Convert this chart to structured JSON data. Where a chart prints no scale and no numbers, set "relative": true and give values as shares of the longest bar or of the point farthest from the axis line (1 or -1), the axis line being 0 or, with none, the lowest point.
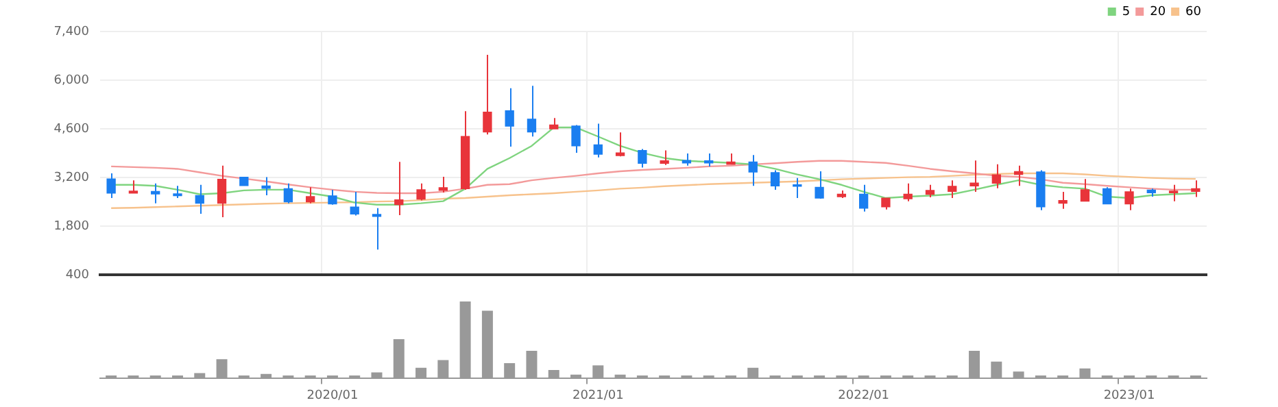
{
  "chart_data": [
    {
      "type": "candlestick",
      "categories": [
        null,
        null,
        null,
        null,
        null,
        null,
        null,
        null,
        null,
        null,
        "2020/01",
        null,
        null,
        null,
        null,
        null,
        null,
        null,
        null,
        null,
        null,
        null,
        "2021/01",
        null,
        null,
        null,
        null,
        null,
        null,
        null,
        null,
        null,
        null,
        null,
        "2022/01",
        null,
        null,
        null,
        null,
        null,
        null,
        null,
        null,
        null,
        null,
        null,
        "2023/01",
        null,
        null,
        null
      ],
      "ohlc": [
        [
          3160,
          3320,
          2610,
          2750
        ],
        [
          2750,
          3120,
          2750,
          2810
        ],
        [
          2800,
          3030,
          2460,
          2730
        ],
        [
          2730,
          2960,
          2610,
          2680
        ],
        [
          2680,
          2990,
          2160,
          2460
        ],
        [
          2460,
          3540,
          2060,
          3150
        ],
        [
          3210,
          3210,
          2970,
          2970
        ],
        [
          2960,
          3210,
          2690,
          2890
        ],
        [
          2880,
          3030,
          2460,
          2500
        ],
        [
          2500,
          2920,
          2460,
          2650
        ],
        [
          2670,
          2850,
          2420,
          2440
        ],
        [
          2350,
          2790,
          2110,
          2150
        ],
        [
          2140,
          2320,
          1130,
          2080
        ],
        [
          2420,
          3650,
          2120,
          2560
        ],
        [
          2580,
          3030,
          2540,
          2850
        ],
        [
          2830,
          3220,
          2770,
          2910
        ],
        [
          2880,
          5110,
          2850,
          4380
        ],
        [
          4510,
          6730,
          4440,
          5080
        ],
        [
          5120,
          5770,
          4090,
          4680
        ],
        [
          4880,
          5840,
          4380,
          4510
        ],
        [
          4600,
          4910,
          4600,
          4710
        ],
        [
          4680,
          4710,
          3910,
          4110
        ],
        [
          4140,
          4750,
          3780,
          3870
        ],
        [
          3830,
          4500,
          3810,
          3910
        ],
        [
          3980,
          4020,
          3490,
          3610
        ],
        [
          3610,
          3980,
          3560,
          3680
        ],
        [
          3690,
          3890,
          3540,
          3620
        ],
        [
          3680,
          3890,
          3520,
          3620
        ],
        [
          3580,
          3890,
          3580,
          3650
        ],
        [
          3650,
          3850,
          2960,
          3360
        ],
        [
          3340,
          3410,
          2850,
          2960
        ],
        [
          2990,
          3190,
          2610,
          2950
        ],
        [
          2920,
          3380,
          2590,
          2610
        ],
        [
          2650,
          2830,
          2610,
          2720
        ],
        [
          2720,
          2990,
          2220,
          2320
        ],
        [
          2360,
          2610,
          2280,
          2610
        ],
        [
          2590,
          3030,
          2520,
          2720
        ],
        [
          2720,
          2990,
          2630,
          2830
        ],
        [
          2800,
          3120,
          2610,
          2950
        ],
        [
          2960,
          3690,
          2790,
          3040
        ],
        [
          3040,
          3580,
          2890,
          3280
        ],
        [
          3290,
          3540,
          2960,
          3370
        ],
        [
          3360,
          3410,
          2260,
          2360
        ],
        [
          2460,
          2790,
          2300,
          2540
        ],
        [
          2520,
          3160,
          2520,
          2850
        ],
        [
          2880,
          2920,
          2440,
          2440
        ],
        [
          2440,
          2880,
          2260,
          2790
        ],
        [
          2840,
          2880,
          2650,
          2760
        ],
        [
          2760,
          2990,
          2520,
          2810
        ],
        [
          2800,
          3120,
          2640,
          2880
        ]
      ],
      "series": [
        {
          "name": "5",
          "type": "line",
          "color": "#7fd47f",
          "values": [
            2990,
            2990,
            2960,
            2850,
            2720,
            2750,
            2830,
            2850,
            2850,
            2750,
            2650,
            2480,
            2420,
            2420,
            2460,
            2520,
            2880,
            3450,
            3760,
            4110,
            4640,
            4640,
            4380,
            4110,
            3910,
            3760,
            3680,
            3650,
            3620,
            3580,
            3450,
            3290,
            3150,
            2990,
            2790,
            2610,
            2650,
            2680,
            2720,
            2850,
            2990,
            3120,
            2990,
            2920,
            2880,
            2650,
            2610,
            2690,
            2720,
            2750
          ]
        },
        {
          "name": "20",
          "type": "line",
          "color": "#f39a9a",
          "values": [
            3520,
            3500,
            3480,
            3450,
            3350,
            3250,
            3170,
            3090,
            3000,
            2920,
            2850,
            2790,
            2760,
            2750,
            2750,
            2790,
            2880,
            2990,
            3010,
            3120,
            3190,
            3250,
            3320,
            3380,
            3420,
            3450,
            3480,
            3520,
            3540,
            3580,
            3610,
            3650,
            3680,
            3680,
            3650,
            3620,
            3540,
            3450,
            3380,
            3320,
            3250,
            3220,
            3150,
            3050,
            3010,
            2960,
            2920,
            2880,
            2850,
            2850
          ]
        },
        {
          "name": "60",
          "type": "line",
          "color": "#f7c28c",
          "values": [
            2320,
            2330,
            2350,
            2370,
            2390,
            2410,
            2430,
            2450,
            2460,
            2470,
            2480,
            2490,
            2510,
            2520,
            2550,
            2590,
            2610,
            2650,
            2690,
            2720,
            2750,
            2790,
            2830,
            2880,
            2910,
            2950,
            2980,
            3010,
            3030,
            3050,
            3070,
            3090,
            3120,
            3150,
            3170,
            3190,
            3210,
            3220,
            3250,
            3280,
            3300,
            3320,
            3320,
            3320,
            3290,
            3250,
            3220,
            3190,
            3170,
            3160
          ]
        }
      ],
      "colors": [
        "#1a7ef0",
        "#e8343a",
        "#1a7ef0",
        "#1a7ef0",
        "#1a7ef0",
        "#e8343a",
        "#1a7ef0",
        "#1a7ef0",
        "#1a7ef0",
        "#e8343a",
        "#1a7ef0",
        "#1a7ef0",
        "#1a7ef0",
        "#e8343a",
        "#e8343a",
        "#e8343a",
        "#e8343a",
        "#e8343a",
        "#1a7ef0",
        "#1a7ef0",
        "#e8343a",
        "#1a7ef0",
        "#1a7ef0",
        "#e8343a",
        "#1a7ef0",
        "#e8343a",
        "#1a7ef0",
        "#1a7ef0",
        "#e8343a",
        "#1a7ef0",
        "#1a7ef0",
        "#1a7ef0",
        "#1a7ef0",
        "#e8343a",
        "#1a7ef0",
        "#e8343a",
        "#e8343a",
        "#e8343a",
        "#e8343a",
        "#e8343a",
        "#e8343a",
        "#e8343a",
        "#1a7ef0",
        "#e8343a",
        "#e8343a",
        "#1a7ef0",
        "#e8343a",
        "#1a7ef0",
        "#e8343a",
        "#e8343a"
      ],
      "ylim": [
        400,
        7400
      ],
      "yticks": [
        400,
        {
          "value": 1800,
          "label": "1,800"
        },
        {
          "value": 3200,
          "label": "3,200"
        },
        {
          "value": 4600,
          "label": "4,600"
        },
        {
          "value": 6000,
          "label": "6,000"
        },
        {
          "value": 7400,
          "label": "7,400"
        }
      ],
      "grid": true,
      "legend": "top right",
      "marker": "none",
      "tick_labels": "y"
    },
    {
      "type": "bar",
      "relative": true,
      "color": "#999999",
      "categories": [
        null,
        null,
        null,
        null,
        null,
        null,
        null,
        null,
        null,
        null,
        "2020/01",
        null,
        null,
        null,
        null,
        null,
        null,
        null,
        null,
        null,
        null,
        null,
        "2021/01",
        null,
        null,
        null,
        null,
        null,
        null,
        null,
        null,
        null,
        null,
        null,
        "2022/01",
        null,
        null,
        null,
        null,
        null,
        null,
        null,
        null,
        null,
        null,
        null,
        "2023/01",
        null,
        null,
        null
      ],
      "values": [
        0.04,
        0.04,
        0.04,
        0.04,
        0.07,
        0.25,
        0.04,
        0.06,
        0.04,
        0.04,
        0.04,
        0.04,
        0.08,
        0.51,
        0.14,
        0.24,
        1,
        0.88,
        0.2,
        0.36,
        0.11,
        0.05,
        0.17,
        0.05,
        0.04,
        0.04,
        0.04,
        0.04,
        0.04,
        0.14,
        0.04,
        0.04,
        0.04,
        0.04,
        0.04,
        0.04,
        0.04,
        0.04,
        0.04,
        0.36,
        0.22,
        0.09,
        0.04,
        0.04,
        0.13,
        0.04,
        0.04,
        0.04,
        0.04,
        0.04
      ],
      "tick_labels": "x"
    }
  ]
}
